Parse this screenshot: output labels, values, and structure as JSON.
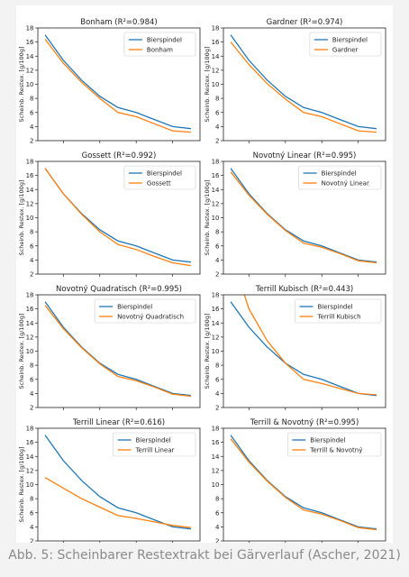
{
  "caption": "Abb. 5: Scheinbarer Restextrakt bei Gärverlauf (Ascher, 2021)",
  "colors": {
    "bierspindel": "#1f77b4",
    "model": "#ff7f0e"
  },
  "chart_data": [
    {
      "type": "line",
      "title": "Bonham (R²=0.984)",
      "ylabel": "Scheinb. Restex. [g/100g]",
      "xlim": [
        0.6,
        9.5
      ],
      "ylim": [
        2,
        18
      ],
      "xticks": [
        2,
        4,
        6,
        8
      ],
      "yticks": [
        2,
        4,
        6,
        8,
        10,
        12,
        14,
        16,
        18
      ],
      "xticklabels_visible": false,
      "legend": "top-right",
      "x": [
        1,
        2,
        3,
        4,
        5,
        6,
        7,
        8,
        9
      ],
      "series": [
        {
          "name": "Bierspindel",
          "values": [
            17.0,
            13.4,
            10.6,
            8.3,
            6.7,
            6.0,
            5.0,
            4.0,
            3.7
          ]
        },
        {
          "name": "Bonham",
          "values": [
            16.4,
            13.0,
            10.3,
            8.0,
            6.0,
            5.4,
            4.4,
            3.4,
            3.2
          ]
        }
      ]
    },
    {
      "type": "line",
      "title": "Gardner (R²=0.974)",
      "ylabel": "Scheinb. Restex. [g/100g]",
      "xlim": [
        0.6,
        9.5
      ],
      "ylim": [
        2,
        18
      ],
      "xticks": [
        2,
        4,
        6,
        8
      ],
      "yticks": [
        2,
        4,
        6,
        8,
        10,
        12,
        14,
        16,
        18
      ],
      "xticklabels_visible": false,
      "legend": "top-right",
      "x": [
        1,
        2,
        3,
        4,
        5,
        6,
        7,
        8,
        9
      ],
      "series": [
        {
          "name": "Bierspindel",
          "values": [
            17.0,
            13.4,
            10.6,
            8.3,
            6.7,
            6.0,
            5.0,
            4.0,
            3.7
          ]
        },
        {
          "name": "Gardner",
          "values": [
            16.0,
            12.8,
            10.1,
            7.9,
            6.0,
            5.4,
            4.4,
            3.4,
            3.2
          ]
        }
      ]
    },
    {
      "type": "line",
      "title": "Gossett (R²=0.992)",
      "ylabel": "Scheinb. Restex. [g/100g]",
      "xlim": [
        0.6,
        9.5
      ],
      "ylim": [
        2,
        18
      ],
      "xticks": [
        2,
        4,
        6,
        8
      ],
      "yticks": [
        2,
        4,
        6,
        8,
        10,
        12,
        14,
        16,
        18
      ],
      "xticklabels_visible": false,
      "legend": "top-right",
      "x": [
        1,
        2,
        3,
        4,
        5,
        6,
        7,
        8,
        9
      ],
      "series": [
        {
          "name": "Bierspindel",
          "values": [
            17.0,
            13.4,
            10.6,
            8.3,
            6.7,
            6.0,
            5.0,
            4.0,
            3.7
          ]
        },
        {
          "name": "Gossett",
          "values": [
            17.0,
            13.4,
            10.5,
            8.0,
            6.2,
            5.5,
            4.5,
            3.6,
            3.2
          ]
        }
      ]
    },
    {
      "type": "line",
      "title": "Novotný Linear (R²=0.995)",
      "ylabel": "Scheinb. Restex. [g/100g]",
      "xlim": [
        0.6,
        9.5
      ],
      "ylim": [
        2,
        18
      ],
      "xticks": [
        2,
        4,
        6,
        8
      ],
      "yticks": [
        2,
        4,
        6,
        8,
        10,
        12,
        14,
        16,
        18
      ],
      "xticklabels_visible": false,
      "legend": "top-right",
      "x": [
        1,
        2,
        3,
        4,
        5,
        6,
        7,
        8,
        9
      ],
      "series": [
        {
          "name": "Bierspindel",
          "values": [
            17.0,
            13.4,
            10.6,
            8.3,
            6.7,
            6.0,
            5.0,
            4.0,
            3.7
          ]
        },
        {
          "name": "Novotný Linear",
          "values": [
            16.5,
            13.2,
            10.5,
            8.2,
            6.4,
            5.8,
            4.9,
            3.9,
            3.6
          ]
        }
      ]
    },
    {
      "type": "line",
      "title": "Novotný Quadratisch (R²=0.995)",
      "ylabel": "Scheinb. Restex. [g/100g]",
      "xlim": [
        0.6,
        9.5
      ],
      "ylim": [
        2,
        18
      ],
      "xticks": [
        2,
        4,
        6,
        8
      ],
      "yticks": [
        2,
        4,
        6,
        8,
        10,
        12,
        14,
        16,
        18
      ],
      "xticklabels_visible": false,
      "legend": "top-right",
      "x": [
        1,
        2,
        3,
        4,
        5,
        6,
        7,
        8,
        9
      ],
      "series": [
        {
          "name": "Bierspindel",
          "values": [
            17.0,
            13.4,
            10.6,
            8.3,
            6.7,
            6.0,
            5.0,
            4.0,
            3.7
          ]
        },
        {
          "name": "Novotný Quadratisch",
          "values": [
            16.5,
            13.2,
            10.5,
            8.2,
            6.4,
            5.8,
            4.9,
            3.9,
            3.6
          ]
        }
      ]
    },
    {
      "type": "line",
      "title": "Terrill Kubisch (R²=0.443)",
      "ylabel": "Scheinb. Restex. [g/100g]",
      "xlim": [
        0.6,
        9.5
      ],
      "ylim": [
        2,
        18
      ],
      "xticks": [
        2,
        4,
        6,
        8
      ],
      "yticks": [
        2,
        4,
        6,
        8,
        10,
        12,
        14,
        16,
        18
      ],
      "xticklabels_visible": false,
      "legend": "top-right",
      "x": [
        1,
        2,
        3,
        4,
        5,
        6,
        7,
        8,
        9
      ],
      "series": [
        {
          "name": "Bierspindel",
          "values": [
            17.0,
            13.4,
            10.6,
            8.3,
            6.7,
            6.0,
            5.0,
            4.0,
            3.7
          ]
        },
        {
          "name": "Terrill Kubisch",
          "values": [
            24.0,
            16.0,
            11.5,
            8.3,
            6.0,
            5.4,
            4.7,
            4.0,
            3.8
          ]
        }
      ]
    },
    {
      "type": "line",
      "title": "Terrill Linear (R²=0.616)",
      "ylabel": "Scheinb. Restex. [g/100g]",
      "xlim": [
        0.6,
        9.5
      ],
      "ylim": [
        2,
        18
      ],
      "xticks": [
        2,
        4,
        6,
        8
      ],
      "yticks": [
        2,
        4,
        6,
        8,
        10,
        12,
        14,
        16,
        18
      ],
      "xticklabels_visible": true,
      "legend": "top-right",
      "x": [
        1,
        2,
        3,
        4,
        5,
        6,
        7,
        8,
        9
      ],
      "series": [
        {
          "name": "Bierspindel",
          "values": [
            17.0,
            13.4,
            10.6,
            8.3,
            6.7,
            6.0,
            5.0,
            4.0,
            3.7
          ]
        },
        {
          "name": "Terrill Linear",
          "values": [
            11.0,
            9.5,
            8.0,
            6.8,
            5.6,
            5.2,
            4.7,
            4.2,
            3.9
          ]
        }
      ]
    },
    {
      "type": "line",
      "title": "Terrill & Novotný (R²=0.995)",
      "ylabel": "",
      "xlim": [
        0.6,
        9.5
      ],
      "ylim": [
        2,
        18
      ],
      "xticks": [
        2,
        4,
        6,
        8
      ],
      "yticks": [
        2,
        4,
        6,
        8,
        10,
        12,
        14,
        16,
        18
      ],
      "xticklabels_visible": true,
      "legend": "top-right",
      "x": [
        1,
        2,
        3,
        4,
        5,
        6,
        7,
        8,
        9
      ],
      "series": [
        {
          "name": "Bierspindel",
          "values": [
            17.0,
            13.4,
            10.6,
            8.3,
            6.7,
            6.0,
            5.0,
            4.0,
            3.7
          ]
        },
        {
          "name": "Terrill & Novotný",
          "values": [
            16.5,
            13.2,
            10.5,
            8.2,
            6.4,
            5.8,
            4.9,
            3.9,
            3.6
          ]
        }
      ]
    }
  ]
}
